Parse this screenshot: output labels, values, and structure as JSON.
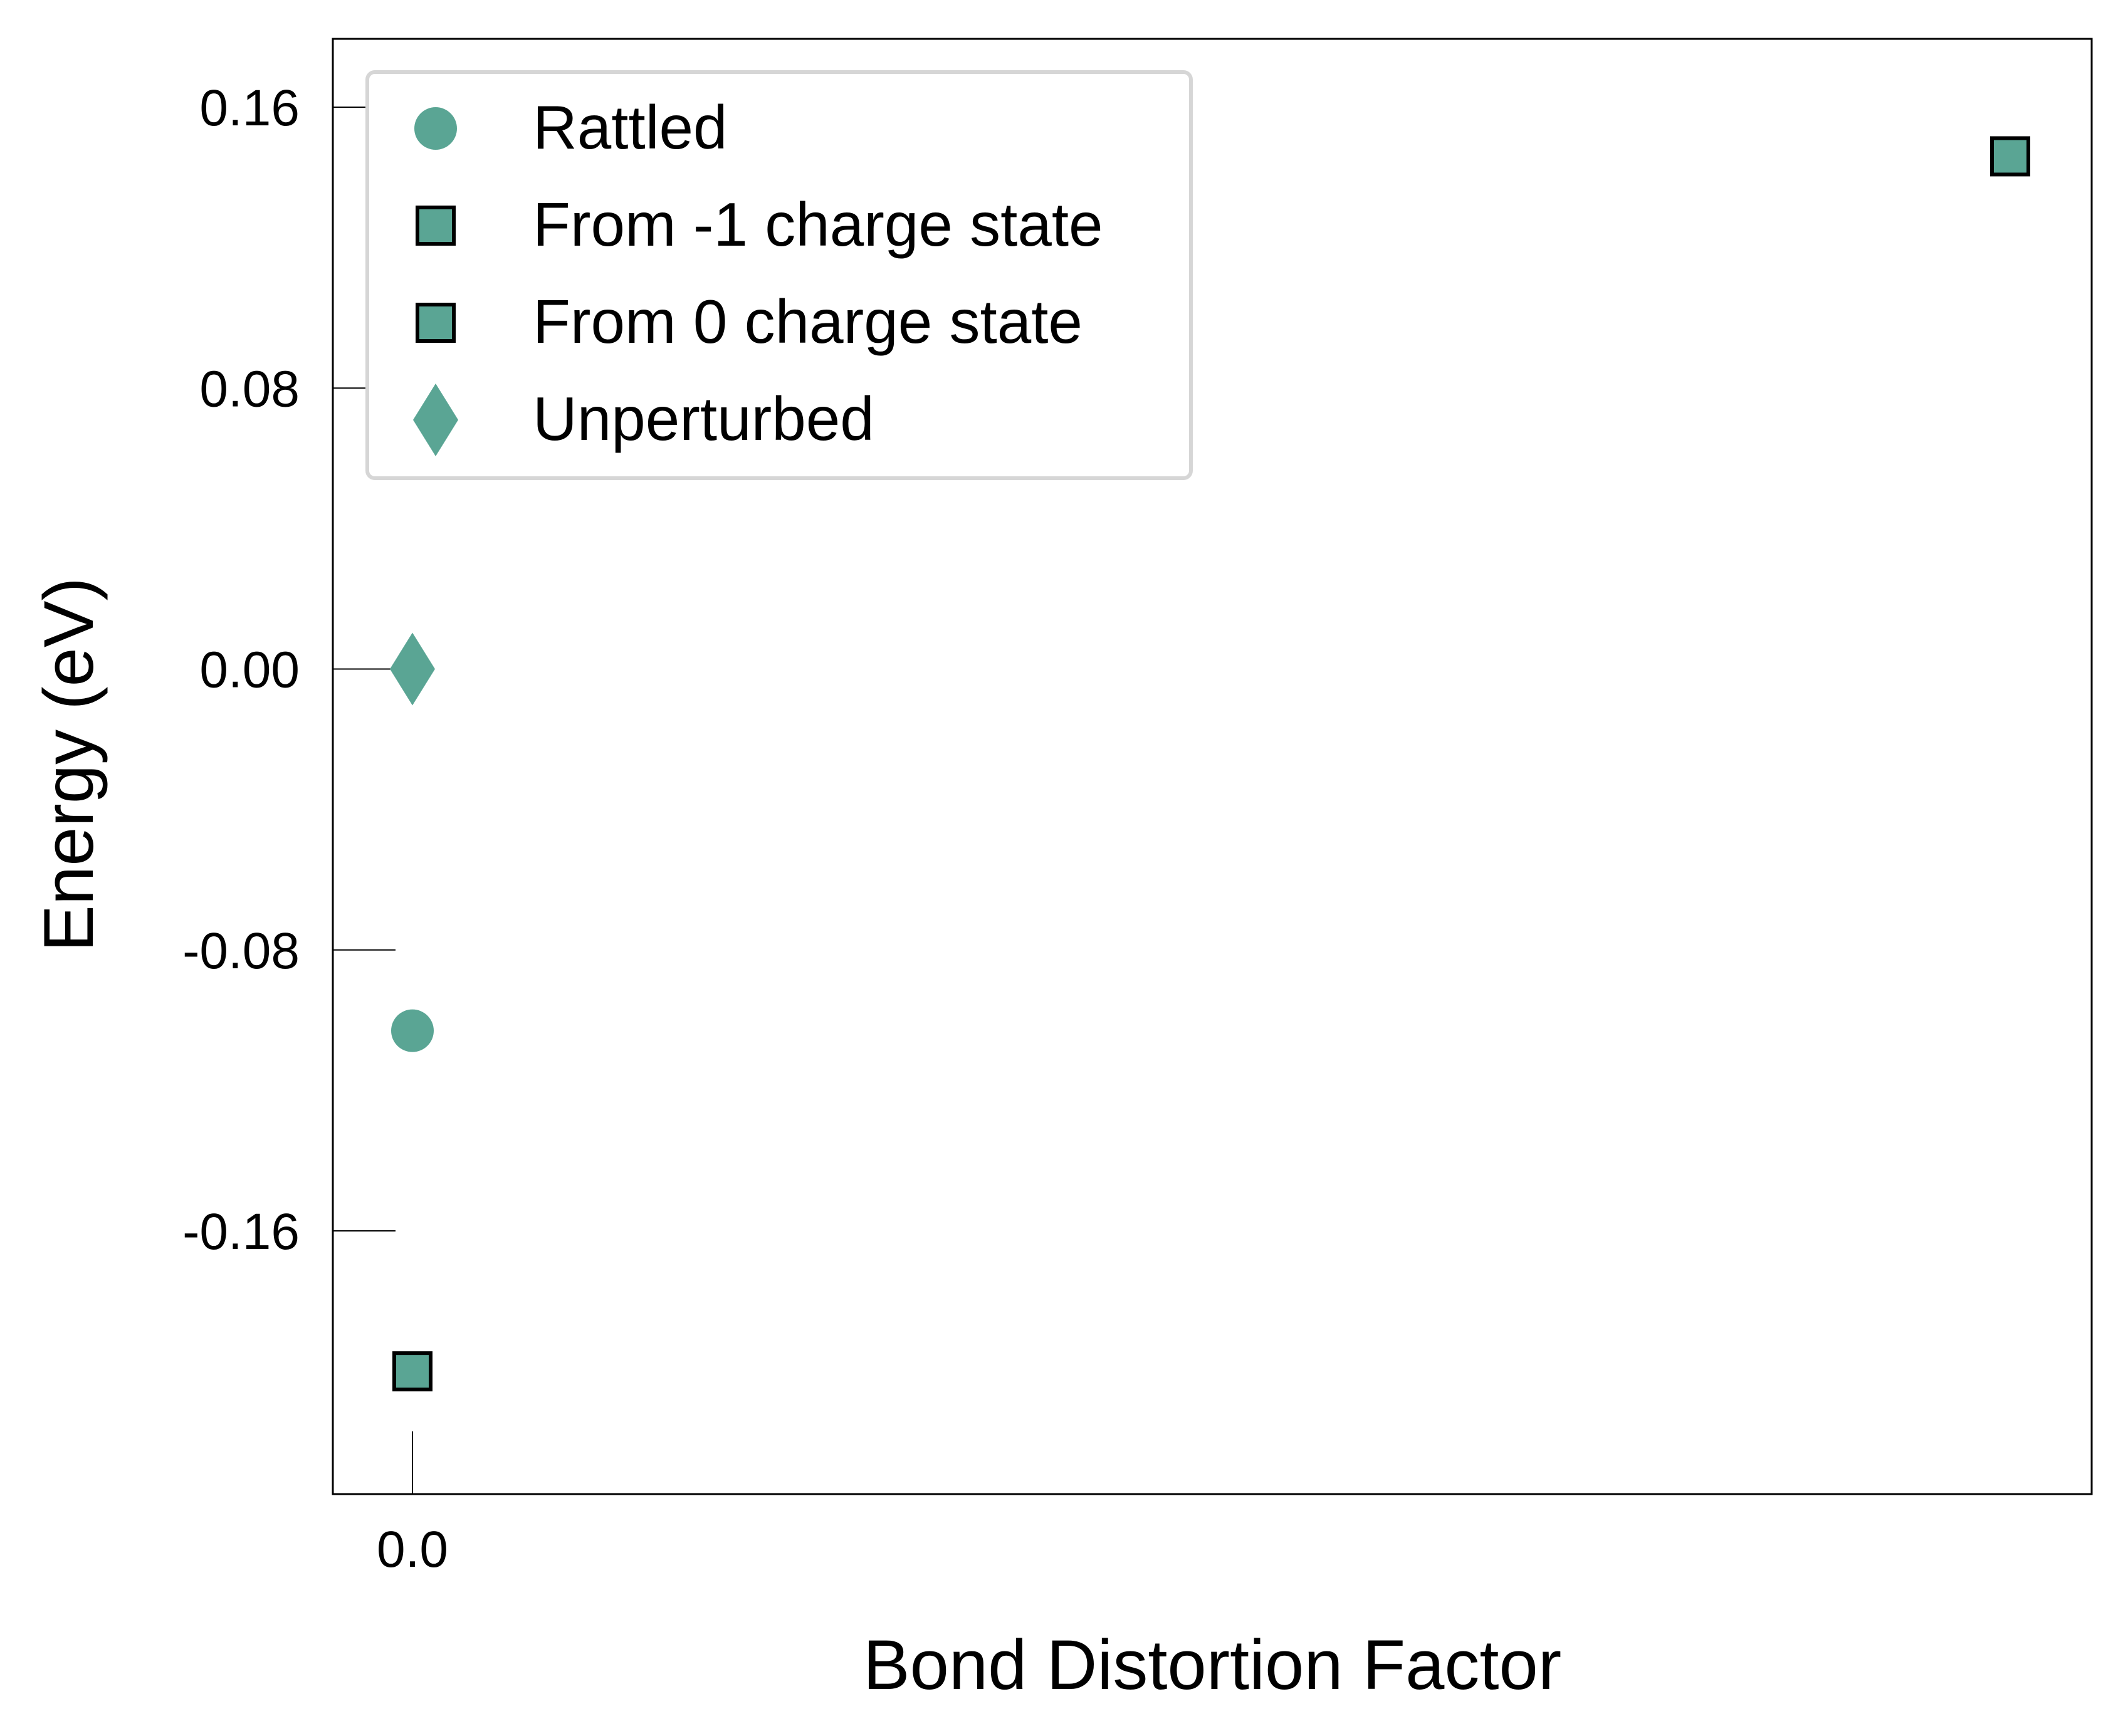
{
  "chart_data": {
    "type": "scatter",
    "xlabel": "Bond Distortion Factor",
    "ylabel": "Energy (eV)",
    "x_ticks": [
      {
        "value": 0.0,
        "label": "0.0"
      }
    ],
    "y_ticks": [
      {
        "value": 0.16,
        "label": "0.16"
      },
      {
        "value": 0.08,
        "label": "0.08"
      },
      {
        "value": 0.0,
        "label": "0.00"
      },
      {
        "value": -0.08,
        "label": "-0.08"
      },
      {
        "value": -0.16,
        "label": "-0.16"
      }
    ],
    "ylim": [
      -0.235,
      0.18
    ],
    "grid": false,
    "legend_position": "top-left",
    "series": [
      {
        "name": "Rattled",
        "marker": "circle",
        "color": "#5aa594",
        "edge": "none",
        "points": [
          {
            "x": 0.0,
            "y": -0.103
          }
        ]
      },
      {
        "name": "From -1 charge state",
        "marker": "square",
        "color": "#5aa594",
        "edge": "#000000",
        "points": [
          {
            "x": 1.0,
            "y": 0.146
          }
        ]
      },
      {
        "name": "From 0 charge state",
        "marker": "square",
        "color": "#5aa594",
        "edge": "#000000",
        "points": [
          {
            "x": 0.0,
            "y": -0.2
          }
        ]
      },
      {
        "name": "Unperturbed",
        "marker": "diamond",
        "color": "#5aa594",
        "edge": "none",
        "points": [
          {
            "x": 0.0,
            "y": 0.0
          }
        ]
      }
    ]
  }
}
